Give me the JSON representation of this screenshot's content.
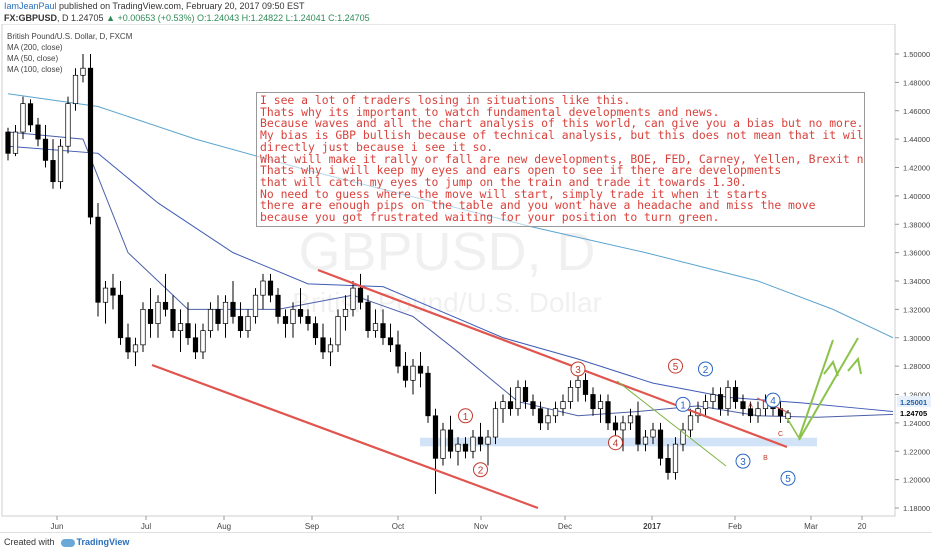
{
  "header": {
    "author": "IamJeanPaul",
    "published_text": " published on TradingView.com, February 20, 2017 09:50 EST",
    "symbol": "FX:GBPUSD",
    "interval": ", D ",
    "last": "1.24705",
    "change": " ▲ +0.00653 (+0.53%) ",
    "ohlc": "O:1.24043 H:1.24822 L:1.24041 C:1.24705"
  },
  "legend": {
    "title": "British Pound/U.S. Dollar, D, FXCM",
    "items": [
      "MA (200, close)",
      "MA (50, close)",
      "MA (100, close)"
    ]
  },
  "watermark": {
    "symbol": "GBPUSD, D",
    "description": "British Pound/U.S. Dollar"
  },
  "annotation": {
    "lines": [
      "I see a lot of traders losing in situations like this.",
      "Thats why its important to watch fundamental developments and news.",
      "Because waves and all the chart analysis of this world, can give you a bias but no more.",
      "My bias is GBP bullish because of technical analysis, but this does not mean that it will rally",
      "directly just because i see it so.",
      "What will make it rally or fall are new developments, BOE, FED, Carney, Yellen, Brexit news.",
      "Thats why i will keep my eyes and ears open to see if there are developments",
      "that will catch my eyes to jump on the train and trade it towards 1.30.",
      "No need to guess where the move will start, simply trade it when it starts",
      "there are enough pips on the table and you wont have a headache and miss the move",
      "because you got frustrated waiting for your position to turn green."
    ]
  },
  "footer": {
    "created_with": "Created with",
    "brand": "TradingView"
  },
  "colors": {
    "bull": "#000000",
    "bear": "#ffffff",
    "channel": "#e0554e",
    "ma200": "#5ba3d0",
    "ma100": "#3f5bb5",
    "ma50": "#4b5fa8",
    "arrow": "#8bc34a",
    "support": "#c7dcf5",
    "label_red": "#c0392b",
    "label_blue": "#2b66c4"
  },
  "chart_data": {
    "type": "candlestick",
    "title": "British Pound/U.S. Dollar, D, FXCM",
    "x_tick_labels": [
      "Jun",
      "Jul",
      "Aug",
      "Sep",
      "Oct",
      "Nov",
      "Dec",
      "2017",
      "Feb",
      "Mar",
      "20"
    ],
    "y_tick_labels": [
      "1.50000",
      "1.48000",
      "1.46000",
      "1.44000",
      "1.42000",
      "1.40000",
      "1.38000",
      "1.36000",
      "1.34000",
      "1.32000",
      "1.30000",
      "1.28000",
      "1.26000",
      "1.24000",
      "1.22000",
      "1.20000",
      "1.18000"
    ],
    "ylim": [
      1.175,
      1.51
    ],
    "price_labels": [
      "1.25001",
      "1.24705"
    ],
    "candles_approx": [
      [
        1.445,
        1.448,
        1.425,
        1.43
      ],
      [
        1.43,
        1.45,
        1.428,
        1.445
      ],
      [
        1.445,
        1.47,
        1.44,
        1.465
      ],
      [
        1.465,
        1.468,
        1.445,
        1.45
      ],
      [
        1.45,
        1.455,
        1.435,
        1.44
      ],
      [
        1.44,
        1.45,
        1.42,
        1.425
      ],
      [
        1.425,
        1.44,
        1.405,
        1.41
      ],
      [
        1.41,
        1.44,
        1.405,
        1.435
      ],
      [
        1.435,
        1.47,
        1.43,
        1.465
      ],
      [
        1.465,
        1.49,
        1.46,
        1.485
      ],
      [
        1.485,
        1.5,
        1.48,
        1.49
      ],
      [
        1.49,
        1.5,
        1.38,
        1.385
      ],
      [
        1.385,
        1.395,
        1.315,
        1.325
      ],
      [
        1.325,
        1.34,
        1.31,
        1.335
      ],
      [
        1.335,
        1.345,
        1.32,
        1.33
      ],
      [
        1.33,
        1.34,
        1.295,
        1.3
      ],
      [
        1.3,
        1.31,
        1.285,
        1.29
      ],
      [
        1.29,
        1.3,
        1.28,
        1.295
      ],
      [
        1.295,
        1.325,
        1.29,
        1.32
      ],
      [
        1.32,
        1.335,
        1.3,
        1.31
      ],
      [
        1.31,
        1.33,
        1.3,
        1.325
      ],
      [
        1.325,
        1.345,
        1.315,
        1.32
      ],
      [
        1.32,
        1.33,
        1.3,
        1.305
      ],
      [
        1.305,
        1.32,
        1.29,
        1.31
      ],
      [
        1.31,
        1.325,
        1.295,
        1.3
      ],
      [
        1.3,
        1.31,
        1.285,
        1.29
      ],
      [
        1.29,
        1.31,
        1.285,
        1.305
      ],
      [
        1.305,
        1.325,
        1.3,
        1.32
      ],
      [
        1.32,
        1.33,
        1.305,
        1.31
      ],
      [
        1.31,
        1.33,
        1.3,
        1.325
      ],
      [
        1.325,
        1.34,
        1.31,
        1.315
      ],
      [
        1.315,
        1.325,
        1.3,
        1.305
      ],
      [
        1.305,
        1.32,
        1.3,
        1.315
      ],
      [
        1.315,
        1.335,
        1.31,
        1.33
      ],
      [
        1.33,
        1.345,
        1.32,
        1.34
      ],
      [
        1.34,
        1.345,
        1.325,
        1.33
      ],
      [
        1.33,
        1.335,
        1.31,
        1.315
      ],
      [
        1.315,
        1.32,
        1.3,
        1.31
      ],
      [
        1.31,
        1.325,
        1.3,
        1.32
      ],
      [
        1.32,
        1.335,
        1.31,
        1.315
      ],
      [
        1.315,
        1.32,
        1.305,
        1.31
      ],
      [
        1.31,
        1.315,
        1.295,
        1.3
      ],
      [
        1.3,
        1.31,
        1.285,
        1.29
      ],
      [
        1.29,
        1.3,
        1.28,
        1.295
      ],
      [
        1.295,
        1.32,
        1.29,
        1.315
      ],
      [
        1.315,
        1.33,
        1.305,
        1.32
      ],
      [
        1.32,
        1.34,
        1.315,
        1.335
      ],
      [
        1.335,
        1.345,
        1.32,
        1.325
      ],
      [
        1.325,
        1.33,
        1.3,
        1.305
      ],
      [
        1.305,
        1.32,
        1.3,
        1.31
      ],
      [
        1.31,
        1.32,
        1.295,
        1.3
      ],
      [
        1.3,
        1.31,
        1.29,
        1.295
      ],
      [
        1.295,
        1.305,
        1.275,
        1.28
      ],
      [
        1.28,
        1.29,
        1.265,
        1.27
      ],
      [
        1.27,
        1.285,
        1.26,
        1.28
      ],
      [
        1.28,
        1.29,
        1.265,
        1.275
      ],
      [
        1.275,
        1.28,
        1.24,
        1.245
      ],
      [
        1.245,
        1.25,
        1.19,
        1.215
      ],
      [
        1.215,
        1.24,
        1.21,
        1.235
      ],
      [
        1.235,
        1.245,
        1.215,
        1.22
      ],
      [
        1.22,
        1.23,
        1.21,
        1.225
      ],
      [
        1.225,
        1.23,
        1.215,
        1.22
      ],
      [
        1.22,
        1.235,
        1.215,
        1.23
      ],
      [
        1.23,
        1.24,
        1.22,
        1.225
      ],
      [
        1.225,
        1.235,
        1.21,
        1.23
      ],
      [
        1.23,
        1.255,
        1.225,
        1.25
      ],
      [
        1.25,
        1.26,
        1.24,
        1.255
      ],
      [
        1.255,
        1.265,
        1.245,
        1.25
      ],
      [
        1.25,
        1.27,
        1.245,
        1.265
      ],
      [
        1.265,
        1.27,
        1.25,
        1.255
      ],
      [
        1.255,
        1.26,
        1.245,
        1.25
      ],
      [
        1.25,
        1.255,
        1.235,
        1.24
      ],
      [
        1.24,
        1.25,
        1.235,
        1.245
      ],
      [
        1.245,
        1.255,
        1.24,
        1.25
      ],
      [
        1.25,
        1.26,
        1.245,
        1.255
      ],
      [
        1.255,
        1.27,
        1.25,
        1.265
      ],
      [
        1.265,
        1.275,
        1.255,
        1.27
      ],
      [
        1.27,
        1.275,
        1.255,
        1.26
      ],
      [
        1.26,
        1.265,
        1.245,
        1.25
      ],
      [
        1.25,
        1.26,
        1.24,
        1.255
      ],
      [
        1.255,
        1.26,
        1.235,
        1.24
      ],
      [
        1.24,
        1.245,
        1.225,
        1.235
      ],
      [
        1.235,
        1.245,
        1.22,
        1.24
      ],
      [
        1.24,
        1.25,
        1.235,
        1.245
      ],
      [
        1.245,
        1.255,
        1.22,
        1.225
      ],
      [
        1.225,
        1.235,
        1.22,
        1.23
      ],
      [
        1.23,
        1.24,
        1.225,
        1.235
      ],
      [
        1.235,
        1.24,
        1.21,
        1.215
      ],
      [
        1.215,
        1.225,
        1.2,
        1.205
      ],
      [
        1.205,
        1.23,
        1.2,
        1.225
      ],
      [
        1.225,
        1.24,
        1.22,
        1.235
      ],
      [
        1.235,
        1.25,
        1.23,
        1.245
      ],
      [
        1.245,
        1.255,
        1.24,
        1.25
      ],
      [
        1.25,
        1.26,
        1.245,
        1.255
      ],
      [
        1.255,
        1.265,
        1.25,
        1.26
      ],
      [
        1.26,
        1.265,
        1.245,
        1.25
      ],
      [
        1.25,
        1.27,
        1.245,
        1.265
      ],
      [
        1.265,
        1.27,
        1.25,
        1.255
      ],
      [
        1.255,
        1.26,
        1.245,
        1.25
      ],
      [
        1.25,
        1.255,
        1.24,
        1.245
      ],
      [
        1.245,
        1.255,
        1.24,
        1.25
      ],
      [
        1.25,
        1.26,
        1.245,
        1.255
      ],
      [
        1.255,
        1.26,
        1.245,
        1.25
      ],
      [
        1.25,
        1.255,
        1.24,
        1.245
      ],
      [
        1.243,
        1.249,
        1.24,
        1.247
      ]
    ]
  },
  "wave_labels": [
    {
      "text": "1",
      "color": "red",
      "x_index": 61,
      "price": 1.245
    },
    {
      "text": "2",
      "color": "red",
      "x_index": 63,
      "price": 1.207
    },
    {
      "text": "3",
      "color": "red",
      "x_index": 76,
      "price": 1.278
    },
    {
      "text": "4",
      "color": "red",
      "x_index": 81,
      "price": 1.226
    },
    {
      "text": "5",
      "color": "red",
      "x_index": 89,
      "price": 1.28
    },
    {
      "text": "1",
      "color": "blue",
      "x_index": 90,
      "price": 1.253
    },
    {
      "text": "2",
      "color": "blue",
      "x_index": 93,
      "price": 1.278
    },
    {
      "text": "3",
      "color": "blue",
      "x_index": 98,
      "price": 1.213
    },
    {
      "text": "4",
      "color": "blue",
      "x_index": 102,
      "price": 1.256
    },
    {
      "text": "5",
      "color": "blue",
      "x_index": 104,
      "price": 1.201
    },
    {
      "text": "A",
      "color": "red",
      "x_index": 99,
      "price": 1.253
    },
    {
      "text": "B",
      "color": "red",
      "x_index": 101,
      "price": 1.216
    },
    {
      "text": "C",
      "color": "red",
      "x_index": 103,
      "price": 1.233
    }
  ]
}
